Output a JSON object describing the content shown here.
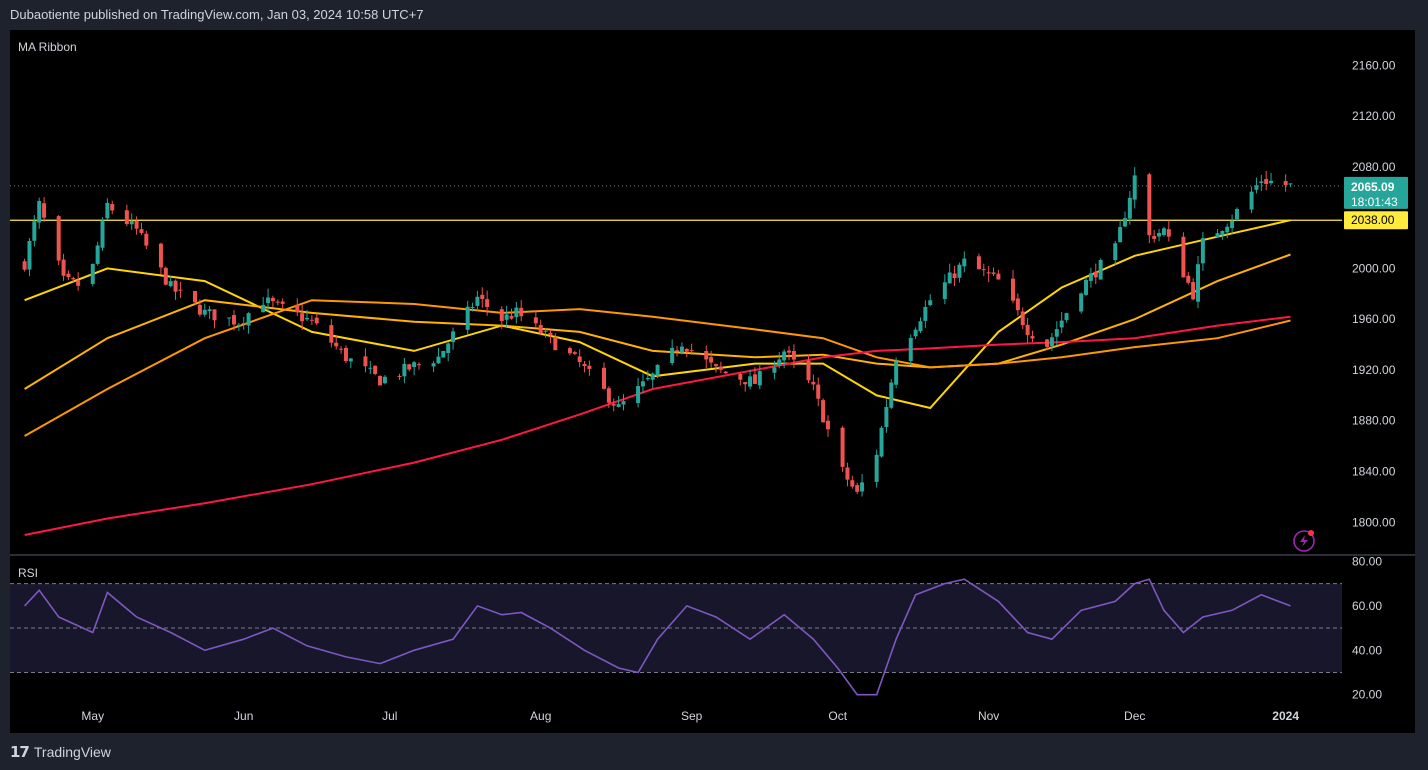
{
  "header": {
    "publisher_line": "Dubaotiente published on TradingView.com, Jan 03, 2024 10:58 UTC+7"
  },
  "footer": {
    "brand": "TradingView",
    "logo_icon": "tradingview-logo-icon"
  },
  "colors": {
    "up": "#26a69a",
    "down": "#ef5350",
    "ma_fast": "#ffd600",
    "ma_mid": "#ffb300",
    "ma_slow": "#ff9800",
    "ma_long": "#ff1744",
    "rsi": "#7e57c2",
    "level": "#ffeb3b"
  },
  "chart_data": [
    {
      "type": "candlestick",
      "title": "MA Ribbon",
      "y_ticks": [
        "2160.00",
        "2120.00",
        "2080.00",
        "2040.00",
        "2000.00",
        "1960.00",
        "1920.00",
        "1880.00",
        "1840.00",
        "1800.00"
      ],
      "ylim": [
        1775,
        2180
      ],
      "x_ticks": [
        "May",
        "Jun",
        "Jul",
        "Aug",
        "Sep",
        "Oct",
        "Nov",
        "Dec",
        "2024"
      ],
      "last_price": "2065.09",
      "countdown": "18:01:43",
      "horizontal_level": "2038.00",
      "ohlc_anchors": [
        [
          "2023-04-17",
          2004
        ],
        [
          "2023-04-20",
          2050
        ],
        [
          "2023-04-25",
          1990
        ],
        [
          "2023-04-30",
          1985
        ],
        [
          "2023-05-04",
          2050
        ],
        [
          "2023-05-10",
          2030
        ],
        [
          "2023-05-17",
          1985
        ],
        [
          "2023-05-24",
          1965
        ],
        [
          "2023-05-31",
          1958
        ],
        [
          "2023-06-05",
          1975
        ],
        [
          "2023-06-15",
          1958
        ],
        [
          "2023-06-22",
          1930
        ],
        [
          "2023-06-29",
          1912
        ],
        [
          "2023-07-06",
          1923
        ],
        [
          "2023-07-11",
          1930
        ],
        [
          "2023-07-19",
          1977
        ],
        [
          "2023-07-24",
          1960
        ],
        [
          "2023-07-27",
          1965
        ],
        [
          "2023-08-01",
          1950
        ],
        [
          "2023-08-09",
          1925
        ],
        [
          "2023-08-17",
          1890
        ],
        [
          "2023-08-24",
          1915
        ],
        [
          "2023-08-30",
          1942
        ],
        [
          "2023-09-06",
          1920
        ],
        [
          "2023-09-14",
          1910
        ],
        [
          "2023-09-20",
          1935
        ],
        [
          "2023-09-26",
          1905
        ],
        [
          "2023-10-02",
          1840
        ],
        [
          "2023-10-05",
          1822
        ],
        [
          "2023-10-09",
          1855
        ],
        [
          "2023-10-13",
          1930
        ],
        [
          "2023-10-20",
          1975
        ],
        [
          "2023-10-27",
          2005
        ],
        [
          "2023-11-03",
          1990
        ],
        [
          "2023-11-09",
          1952
        ],
        [
          "2023-11-13",
          1940
        ],
        [
          "2023-11-20",
          1985
        ],
        [
          "2023-11-27",
          2015
        ],
        [
          "2023-12-01",
          2072
        ],
        [
          "2023-12-04",
          2025
        ],
        [
          "2023-12-07",
          2030
        ],
        [
          "2023-12-13",
          1980
        ],
        [
          "2023-12-15",
          2020
        ],
        [
          "2023-12-21",
          2040
        ],
        [
          "2023-12-27",
          2070
        ],
        [
          "2024-01-02",
          2065.09
        ]
      ],
      "ma_series": [
        {
          "color_key": "ma_fast",
          "points": [
            [
              "2023-04-17",
              1975
            ],
            [
              "2023-05-04",
              2000
            ],
            [
              "2023-05-24",
              1990
            ],
            [
              "2023-06-15",
              1950
            ],
            [
              "2023-07-06",
              1935
            ],
            [
              "2023-07-24",
              1955
            ],
            [
              "2023-08-09",
              1942
            ],
            [
              "2023-08-24",
              1915
            ],
            [
              "2023-09-14",
              1925
            ],
            [
              "2023-09-28",
              1925
            ],
            [
              "2023-10-09",
              1900
            ],
            [
              "2023-10-20",
              1890
            ],
            [
              "2023-11-03",
              1950
            ],
            [
              "2023-11-16",
              1985
            ],
            [
              "2023-12-01",
              2010
            ],
            [
              "2023-12-18",
              2025
            ],
            [
              "2024-01-02",
              2038
            ]
          ]
        },
        {
          "color_key": "ma_mid",
          "points": [
            [
              "2023-04-17",
              1905
            ],
            [
              "2023-05-04",
              1945
            ],
            [
              "2023-05-24",
              1975
            ],
            [
              "2023-06-15",
              1965
            ],
            [
              "2023-07-06",
              1958
            ],
            [
              "2023-07-24",
              1955
            ],
            [
              "2023-08-09",
              1950
            ],
            [
              "2023-08-24",
              1935
            ],
            [
              "2023-09-14",
              1930
            ],
            [
              "2023-09-28",
              1932
            ],
            [
              "2023-10-09",
              1925
            ],
            [
              "2023-10-20",
              1922
            ],
            [
              "2023-11-03",
              1925
            ],
            [
              "2023-11-16",
              1940
            ],
            [
              "2023-12-01",
              1960
            ],
            [
              "2023-12-18",
              1990
            ],
            [
              "2024-01-02",
              2011
            ]
          ]
        },
        {
          "color_key": "ma_slow",
          "points": [
            [
              "2023-04-17",
              1868
            ],
            [
              "2023-05-04",
              1905
            ],
            [
              "2023-05-24",
              1945
            ],
            [
              "2023-06-15",
              1975
            ],
            [
              "2023-07-06",
              1972
            ],
            [
              "2023-07-24",
              1965
            ],
            [
              "2023-08-09",
              1968
            ],
            [
              "2023-08-24",
              1962
            ],
            [
              "2023-09-14",
              1952
            ],
            [
              "2023-09-28",
              1945
            ],
            [
              "2023-10-09",
              1930
            ],
            [
              "2023-10-20",
              1922
            ],
            [
              "2023-11-03",
              1925
            ],
            [
              "2023-11-16",
              1930
            ],
            [
              "2023-12-01",
              1938
            ],
            [
              "2023-12-18",
              1945
            ],
            [
              "2024-01-02",
              1959
            ]
          ]
        },
        {
          "color_key": "ma_long",
          "points": [
            [
              "2023-04-17",
              1790
            ],
            [
              "2023-05-04",
              1803
            ],
            [
              "2023-05-24",
              1815
            ],
            [
              "2023-06-15",
              1830
            ],
            [
              "2023-07-06",
              1847
            ],
            [
              "2023-07-24",
              1865
            ],
            [
              "2023-08-09",
              1885
            ],
            [
              "2023-08-24",
              1905
            ],
            [
              "2023-09-14",
              1920
            ],
            [
              "2023-09-28",
              1930
            ],
            [
              "2023-10-09",
              1935
            ],
            [
              "2023-10-20",
              1937
            ],
            [
              "2023-11-03",
              1940
            ],
            [
              "2023-11-16",
              1942
            ],
            [
              "2023-12-01",
              1945
            ],
            [
              "2023-12-18",
              1955
            ],
            [
              "2024-01-02",
              1962
            ]
          ]
        }
      ]
    },
    {
      "type": "line",
      "title": "RSI",
      "y_ticks": [
        "80.00",
        "60.00",
        "40.00",
        "20.00"
      ],
      "ylim": [
        14,
        82
      ],
      "levels": [
        70,
        50,
        30
      ],
      "series": [
        {
          "color_key": "rsi",
          "points": [
            [
              "2023-04-17",
              60
            ],
            [
              "2023-04-20",
              67
            ],
            [
              "2023-04-24",
              55
            ],
            [
              "2023-05-01",
              48
            ],
            [
              "2023-05-04",
              66
            ],
            [
              "2023-05-10",
              55
            ],
            [
              "2023-05-17",
              48
            ],
            [
              "2023-05-24",
              40
            ],
            [
              "2023-06-01",
              45
            ],
            [
              "2023-06-07",
              50
            ],
            [
              "2023-06-14",
              42
            ],
            [
              "2023-06-22",
              37
            ],
            [
              "2023-06-29",
              34
            ],
            [
              "2023-07-06",
              40
            ],
            [
              "2023-07-14",
              45
            ],
            [
              "2023-07-19",
              60
            ],
            [
              "2023-07-24",
              56
            ],
            [
              "2023-07-28",
              57
            ],
            [
              "2023-08-03",
              50
            ],
            [
              "2023-08-10",
              40
            ],
            [
              "2023-08-17",
              32
            ],
            [
              "2023-08-21",
              30
            ],
            [
              "2023-08-25",
              45
            ],
            [
              "2023-08-31",
              60
            ],
            [
              "2023-09-06",
              55
            ],
            [
              "2023-09-13",
              45
            ],
            [
              "2023-09-20",
              56
            ],
            [
              "2023-09-26",
              45
            ],
            [
              "2023-10-01",
              32
            ],
            [
              "2023-10-05",
              20
            ],
            [
              "2023-10-09",
              20
            ],
            [
              "2023-10-13",
              45
            ],
            [
              "2023-10-17",
              65
            ],
            [
              "2023-10-23",
              70
            ],
            [
              "2023-10-27",
              72
            ],
            [
              "2023-11-03",
              62
            ],
            [
              "2023-11-09",
              48
            ],
            [
              "2023-11-14",
              45
            ],
            [
              "2023-11-20",
              58
            ],
            [
              "2023-11-27",
              62
            ],
            [
              "2023-12-01",
              70
            ],
            [
              "2023-12-04",
              72
            ],
            [
              "2023-12-07",
              58
            ],
            [
              "2023-12-11",
              48
            ],
            [
              "2023-12-15",
              55
            ],
            [
              "2023-12-21",
              58
            ],
            [
              "2023-12-27",
              65
            ],
            [
              "2024-01-02",
              60
            ]
          ]
        }
      ]
    }
  ]
}
